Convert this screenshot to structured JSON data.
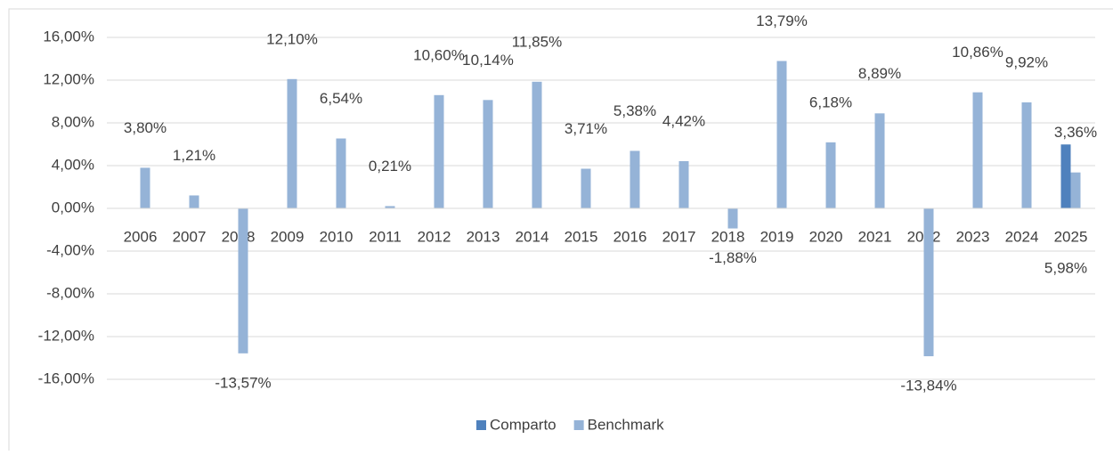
{
  "chart_data": {
    "type": "bar",
    "categories": [
      "2006",
      "2007",
      "2008",
      "2009",
      "2010",
      "2011",
      "2012",
      "2013",
      "2014",
      "2015",
      "2016",
      "2017",
      "2018",
      "2019",
      "2020",
      "2021",
      "2022",
      "2023",
      "2024",
      "2025"
    ],
    "series": [
      {
        "name": "Comparto",
        "color": "#4f81bd",
        "values": [
          null,
          null,
          null,
          null,
          null,
          null,
          null,
          null,
          null,
          null,
          null,
          null,
          null,
          null,
          null,
          null,
          null,
          null,
          null,
          5.98
        ],
        "value_labels": [
          null,
          null,
          null,
          null,
          null,
          null,
          null,
          null,
          null,
          null,
          null,
          null,
          null,
          null,
          null,
          null,
          null,
          null,
          null,
          "5,98%"
        ]
      },
      {
        "name": "Benchmark",
        "color": "#95b3d7",
        "values": [
          3.8,
          1.21,
          -13.57,
          12.1,
          6.54,
          0.21,
          10.6,
          10.14,
          11.85,
          3.71,
          5.38,
          4.42,
          -1.88,
          13.79,
          6.18,
          8.89,
          -13.84,
          10.86,
          9.92,
          3.36
        ],
        "value_labels": [
          "3,80%",
          "1,21%",
          "-13,57%",
          "12,10%",
          "6,54%",
          "0,21%",
          "10,60%",
          "10,14%",
          "11,85%",
          "3,71%",
          "5,38%",
          "4,42%",
          "-1,88%",
          "13,79%",
          "6,18%",
          "8,89%",
          "-13,84%",
          "10,86%",
          "9,92%",
          "3,36%"
        ]
      }
    ],
    "ylim": [
      -16,
      16
    ],
    "yticks": [
      {
        "value": -16,
        "label": "-16,00%"
      },
      {
        "value": -12,
        "label": "-12,00%"
      },
      {
        "value": -8,
        "label": "-8,00%"
      },
      {
        "value": -4,
        "label": "-4,00%"
      },
      {
        "value": 0,
        "label": "0,00%"
      },
      {
        "value": 4,
        "label": "4,00%"
      },
      {
        "value": 8,
        "label": "8,00%"
      },
      {
        "value": 12,
        "label": "12,00%"
      },
      {
        "value": 16,
        "label": "16,00%"
      }
    ],
    "grid": true,
    "legend": "bottom"
  }
}
